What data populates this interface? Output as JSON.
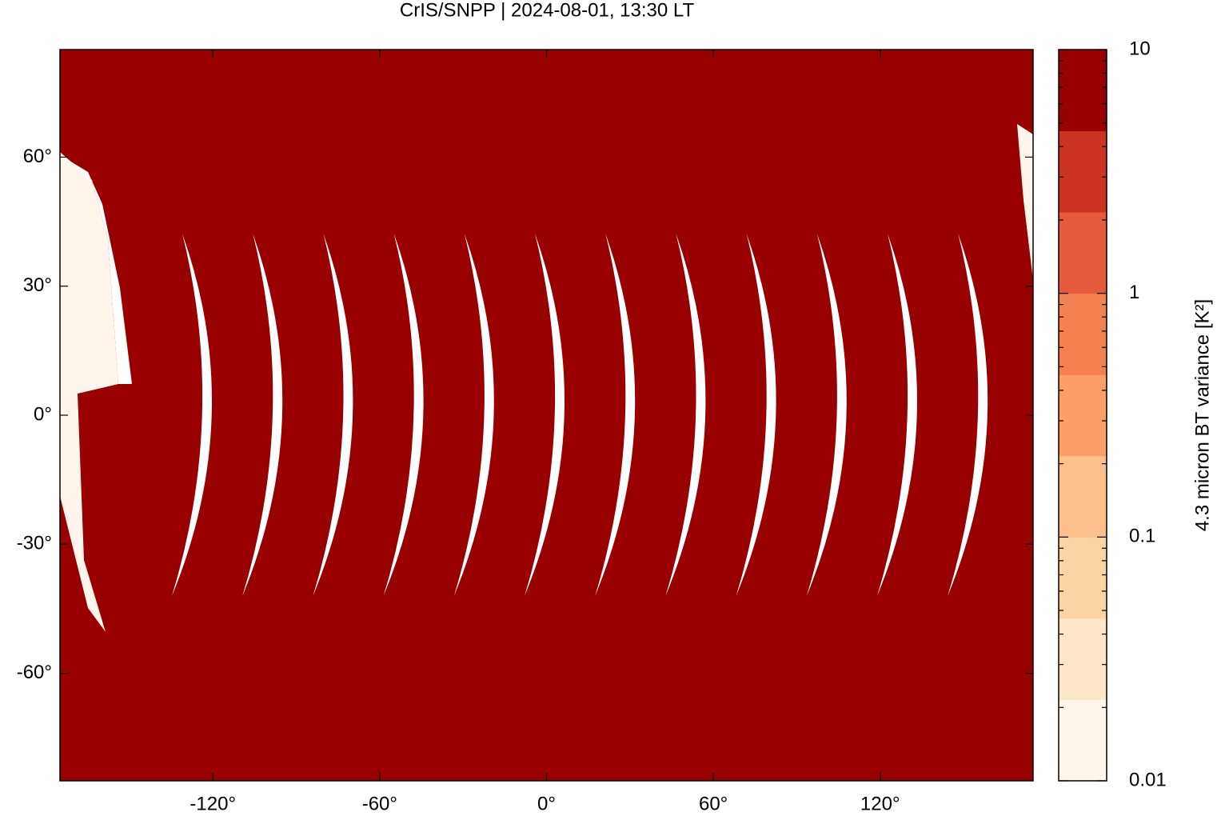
{
  "chart_data": {
    "type": "map",
    "title": "CrIS/SNPP | 2024-08-01, 13:30 LT",
    "xlim": [
      -175,
      175
    ],
    "ylim": [
      -85,
      85
    ],
    "xticks": [
      {
        "value": -120,
        "label": "-120°"
      },
      {
        "value": -60,
        "label": "-60°"
      },
      {
        "value": 0,
        "label": "0°"
      },
      {
        "value": 60,
        "label": "60°"
      },
      {
        "value": 120,
        "label": "120°"
      }
    ],
    "yticks": [
      {
        "value": -60,
        "label": "-60°"
      },
      {
        "value": -30,
        "label": "-30°"
      },
      {
        "value": 0,
        "label": "0°"
      },
      {
        "value": 30,
        "label": "30°"
      },
      {
        "value": 60,
        "label": "60°"
      }
    ],
    "background_color": "#990000",
    "colorbar": {
      "label": "4.3 micron BT variance [K²]",
      "scale": "log",
      "lim": [
        0.01,
        10
      ],
      "ticks": [
        0.01,
        0.1,
        1,
        10
      ],
      "colors": [
        "#fff5eb",
        "#fee6c8",
        "#fdd4a4",
        "#fdc08c",
        "#fb9e68",
        "#f3804f",
        "#e55a3c",
        "#cc3322",
        "#990000"
      ]
    }
  }
}
